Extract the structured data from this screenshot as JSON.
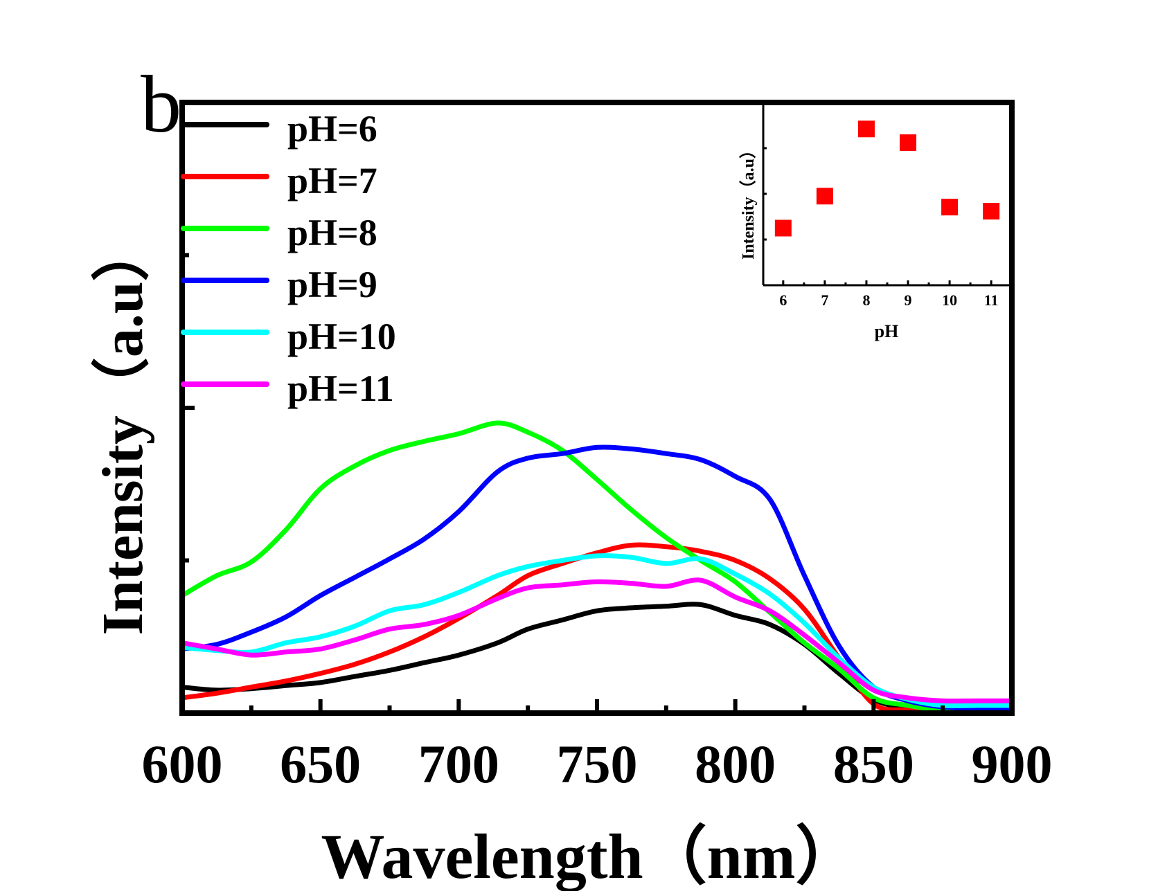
{
  "panel_label": "b",
  "chart_data": [
    {
      "type": "line",
      "title": "",
      "xlabel": "Wavelength（nm）",
      "ylabel": "Intensity（a.u）",
      "xlim": [
        600,
        900
      ],
      "ylim": [
        0,
        4
      ],
      "x_ticks": [
        600,
        650,
        700,
        750,
        800,
        850,
        900
      ],
      "x_tick_labels": [
        "600",
        "650",
        "700",
        "750",
        "800",
        "850",
        "900"
      ],
      "y_ticks": [
        1,
        2,
        3
      ],
      "y_tick_labels_shown": false,
      "grid": false,
      "legend_position": "top-left",
      "x": [
        600,
        612.5,
        625,
        637.5,
        650,
        662.5,
        675,
        687.5,
        700,
        714,
        725,
        737.5,
        750,
        762.5,
        775,
        787.5,
        800,
        812.5,
        825,
        837.5,
        850,
        862.5,
        875,
        887.5,
        900
      ],
      "series": [
        {
          "name": "pH=6",
          "color": "#000000",
          "values": [
            0.17,
            0.15,
            0.16,
            0.18,
            0.2,
            0.24,
            0.28,
            0.33,
            0.38,
            0.46,
            0.55,
            0.61,
            0.67,
            0.69,
            0.7,
            0.71,
            0.64,
            0.58,
            0.45,
            0.26,
            0.09,
            0.03,
            0.01,
            0.0,
            0.0
          ]
        },
        {
          "name": "pH=7",
          "color": "#ff0000",
          "values": [
            0.1,
            0.13,
            0.17,
            0.21,
            0.26,
            0.32,
            0.4,
            0.5,
            0.62,
            0.77,
            0.9,
            0.98,
            1.05,
            1.1,
            1.09,
            1.06,
            1.0,
            0.88,
            0.68,
            0.36,
            0.06,
            0.02,
            0.01,
            0.01,
            0.01
          ]
        },
        {
          "name": "pH=8",
          "color": "#00ff00",
          "values": [
            0.77,
            0.9,
            0.99,
            1.2,
            1.47,
            1.62,
            1.72,
            1.78,
            1.83,
            1.9,
            1.84,
            1.72,
            1.53,
            1.33,
            1.15,
            1.0,
            0.86,
            0.66,
            0.46,
            0.29,
            0.1,
            0.05,
            0.02,
            0.02,
            0.02
          ]
        },
        {
          "name": "pH=9",
          "color": "#0000ff",
          "values": [
            0.42,
            0.45,
            0.53,
            0.63,
            0.77,
            0.89,
            1.01,
            1.14,
            1.32,
            1.58,
            1.67,
            1.7,
            1.74,
            1.73,
            1.7,
            1.66,
            1.55,
            1.4,
            0.9,
            0.44,
            0.17,
            0.08,
            0.04,
            0.03,
            0.03
          ]
        },
        {
          "name": "pH=10",
          "color": "#00ffff",
          "values": [
            0.43,
            0.41,
            0.4,
            0.46,
            0.5,
            0.57,
            0.67,
            0.71,
            0.79,
            0.9,
            0.96,
            1.0,
            1.03,
            1.02,
            0.98,
            1.01,
            0.91,
            0.78,
            0.59,
            0.36,
            0.17,
            0.09,
            0.05,
            0.05,
            0.05
          ]
        },
        {
          "name": "pH=11",
          "color": "#ff00ff",
          "values": [
            0.46,
            0.42,
            0.38,
            0.4,
            0.42,
            0.48,
            0.55,
            0.58,
            0.64,
            0.75,
            0.82,
            0.84,
            0.86,
            0.85,
            0.83,
            0.87,
            0.76,
            0.67,
            0.51,
            0.33,
            0.15,
            0.1,
            0.08,
            0.08,
            0.08
          ]
        }
      ]
    },
    {
      "type": "scatter",
      "title": "",
      "xlabel": "pH",
      "ylabel": "Intensity（a.u）",
      "placement": "inset top-right",
      "xlim": [
        5.52,
        11.43
      ],
      "ylim": [
        0,
        4
      ],
      "x_ticks": [
        6,
        7,
        8,
        9,
        10,
        11
      ],
      "x_tick_labels": [
        "6",
        "7",
        "8",
        "9",
        "10",
        "11"
      ],
      "y_ticks": [
        1,
        2,
        3
      ],
      "y_tick_labels_shown": false,
      "grid": false,
      "marker": "square",
      "color": "#ff0000",
      "x": [
        6,
        7,
        8,
        9,
        10,
        11
      ],
      "y": [
        1.25,
        1.95,
        3.42,
        3.12,
        1.71,
        1.62
      ]
    }
  ]
}
